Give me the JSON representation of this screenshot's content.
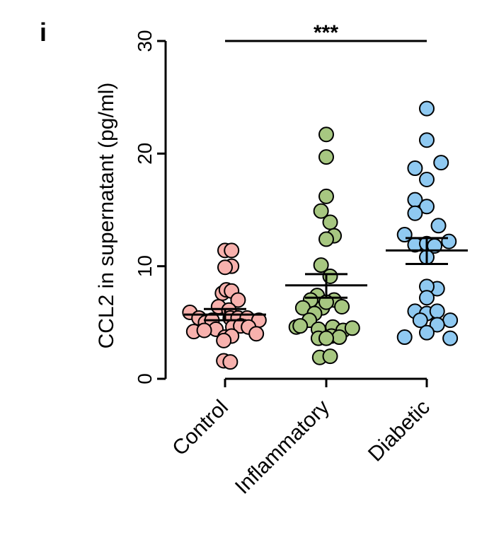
{
  "panel_label": "i",
  "chart_data": {
    "type": "scatter",
    "title": "",
    "xlabel": "",
    "ylabel": "CCL2 in supernatant (pg/ml)",
    "ylim": [
      0,
      30
    ],
    "yticks": [
      "0",
      "10",
      "20",
      "30"
    ],
    "categories": [
      "Control",
      "Inflammatory",
      "Diabetic"
    ],
    "significance": {
      "label": "***",
      "from": "Control",
      "to": "Diabetic",
      "y": 30
    },
    "series": [
      {
        "name": "Control",
        "color": "#F7B1AD",
        "mean": 5.7,
        "sem_low": 5.2,
        "sem_high": 6.2,
        "points": [
          {
            "offset": 0.0,
            "y": 11.4
          },
          {
            "offset": 0.05,
            "y": 11.4
          },
          {
            "offset": 0.05,
            "y": 10.0
          },
          {
            "offset": 0.0,
            "y": 9.9
          },
          {
            "offset": -0.02,
            "y": 7.6
          },
          {
            "offset": 0.01,
            "y": 7.9
          },
          {
            "offset": 0.05,
            "y": 7.8
          },
          {
            "offset": 0.1,
            "y": 7.0
          },
          {
            "offset": -0.05,
            "y": 6.4
          },
          {
            "offset": 0.03,
            "y": 6.1
          },
          {
            "offset": -0.27,
            "y": 5.9
          },
          {
            "offset": -0.2,
            "y": 5.4
          },
          {
            "offset": -0.15,
            "y": 5.0
          },
          {
            "offset": -0.1,
            "y": 5.2
          },
          {
            "offset": 0.04,
            "y": 5.4
          },
          {
            "offset": 0.1,
            "y": 5.4
          },
          {
            "offset": 0.17,
            "y": 5.4
          },
          {
            "offset": 0.26,
            "y": 5.2
          },
          {
            "offset": -0.07,
            "y": 4.4
          },
          {
            "offset": -0.24,
            "y": 4.2
          },
          {
            "offset": -0.16,
            "y": 4.3
          },
          {
            "offset": 0.06,
            "y": 4.6
          },
          {
            "offset": 0.12,
            "y": 4.7
          },
          {
            "offset": 0.18,
            "y": 4.6
          },
          {
            "offset": 0.24,
            "y": 4.0
          },
          {
            "offset": 0.0,
            "y": 3.7
          },
          {
            "offset": 0.05,
            "y": 3.8
          },
          {
            "offset": -0.01,
            "y": 3.4
          },
          {
            "offset": -0.01,
            "y": 1.6
          },
          {
            "offset": 0.04,
            "y": 1.5
          }
        ]
      },
      {
        "name": "Inflammatory",
        "color": "#A7C781",
        "mean": 8.3,
        "sem_low": 7.2,
        "sem_high": 9.3,
        "points": [
          {
            "offset": 0.0,
            "y": 21.7
          },
          {
            "offset": 0.0,
            "y": 19.7
          },
          {
            "offset": 0.0,
            "y": 16.2
          },
          {
            "offset": -0.04,
            "y": 14.9
          },
          {
            "offset": 0.03,
            "y": 13.9
          },
          {
            "offset": 0.06,
            "y": 12.7
          },
          {
            "offset": 0.0,
            "y": 12.4
          },
          {
            "offset": -0.04,
            "y": 10.1
          },
          {
            "offset": 0.03,
            "y": 9.1
          },
          {
            "offset": -0.07,
            "y": 7.4
          },
          {
            "offset": -0.12,
            "y": 7.0
          },
          {
            "offset": 0.06,
            "y": 7.0
          },
          {
            "offset": -0.03,
            "y": 6.3
          },
          {
            "offset": 0.0,
            "y": 6.8
          },
          {
            "offset": 0.12,
            "y": 6.4
          },
          {
            "offset": -0.18,
            "y": 6.3
          },
          {
            "offset": -0.09,
            "y": 5.8
          },
          {
            "offset": -0.13,
            "y": 5.2
          },
          {
            "offset": 0.05,
            "y": 4.6
          },
          {
            "offset": 0.13,
            "y": 4.3
          },
          {
            "offset": -0.23,
            "y": 4.6
          },
          {
            "offset": -0.2,
            "y": 4.7
          },
          {
            "offset": 0.2,
            "y": 4.5
          },
          {
            "offset": -0.06,
            "y": 4.4
          },
          {
            "offset": -0.06,
            "y": 3.6
          },
          {
            "offset": 0.04,
            "y": 3.8
          },
          {
            "offset": 0.1,
            "y": 3.7
          },
          {
            "offset": 0.0,
            "y": 3.6
          },
          {
            "offset": -0.05,
            "y": 1.9
          },
          {
            "offset": 0.03,
            "y": 2.0
          }
        ]
      },
      {
        "name": "Diabetic",
        "color": "#8FC9F1",
        "mean": 11.4,
        "sem_low": 10.2,
        "sem_high": 12.5,
        "points": [
          {
            "offset": 0.0,
            "y": 24.0
          },
          {
            "offset": 0.0,
            "y": 21.2
          },
          {
            "offset": -0.09,
            "y": 18.7
          },
          {
            "offset": 0.0,
            "y": 17.7
          },
          {
            "offset": 0.11,
            "y": 19.2
          },
          {
            "offset": -0.09,
            "y": 15.9
          },
          {
            "offset": 0.0,
            "y": 15.3
          },
          {
            "offset": -0.09,
            "y": 14.7
          },
          {
            "offset": 0.09,
            "y": 13.6
          },
          {
            "offset": -0.17,
            "y": 12.8
          },
          {
            "offset": -0.09,
            "y": 11.9
          },
          {
            "offset": 0.0,
            "y": 12.0
          },
          {
            "offset": 0.06,
            "y": 11.8
          },
          {
            "offset": 0.17,
            "y": 12.2
          },
          {
            "offset": 0.0,
            "y": 10.8
          },
          {
            "offset": 0.08,
            "y": 8.0
          },
          {
            "offset": 0.0,
            "y": 8.2
          },
          {
            "offset": 0.0,
            "y": 7.2
          },
          {
            "offset": -0.09,
            "y": 6.0
          },
          {
            "offset": 0.0,
            "y": 5.8
          },
          {
            "offset": 0.08,
            "y": 6.0
          },
          {
            "offset": -0.05,
            "y": 5.2
          },
          {
            "offset": 0.18,
            "y": 5.2
          },
          {
            "offset": 0.08,
            "y": 4.8
          },
          {
            "offset": 0.0,
            "y": 4.1
          },
          {
            "offset": -0.17,
            "y": 3.7
          },
          {
            "offset": 0.18,
            "y": 3.6
          }
        ]
      }
    ]
  }
}
